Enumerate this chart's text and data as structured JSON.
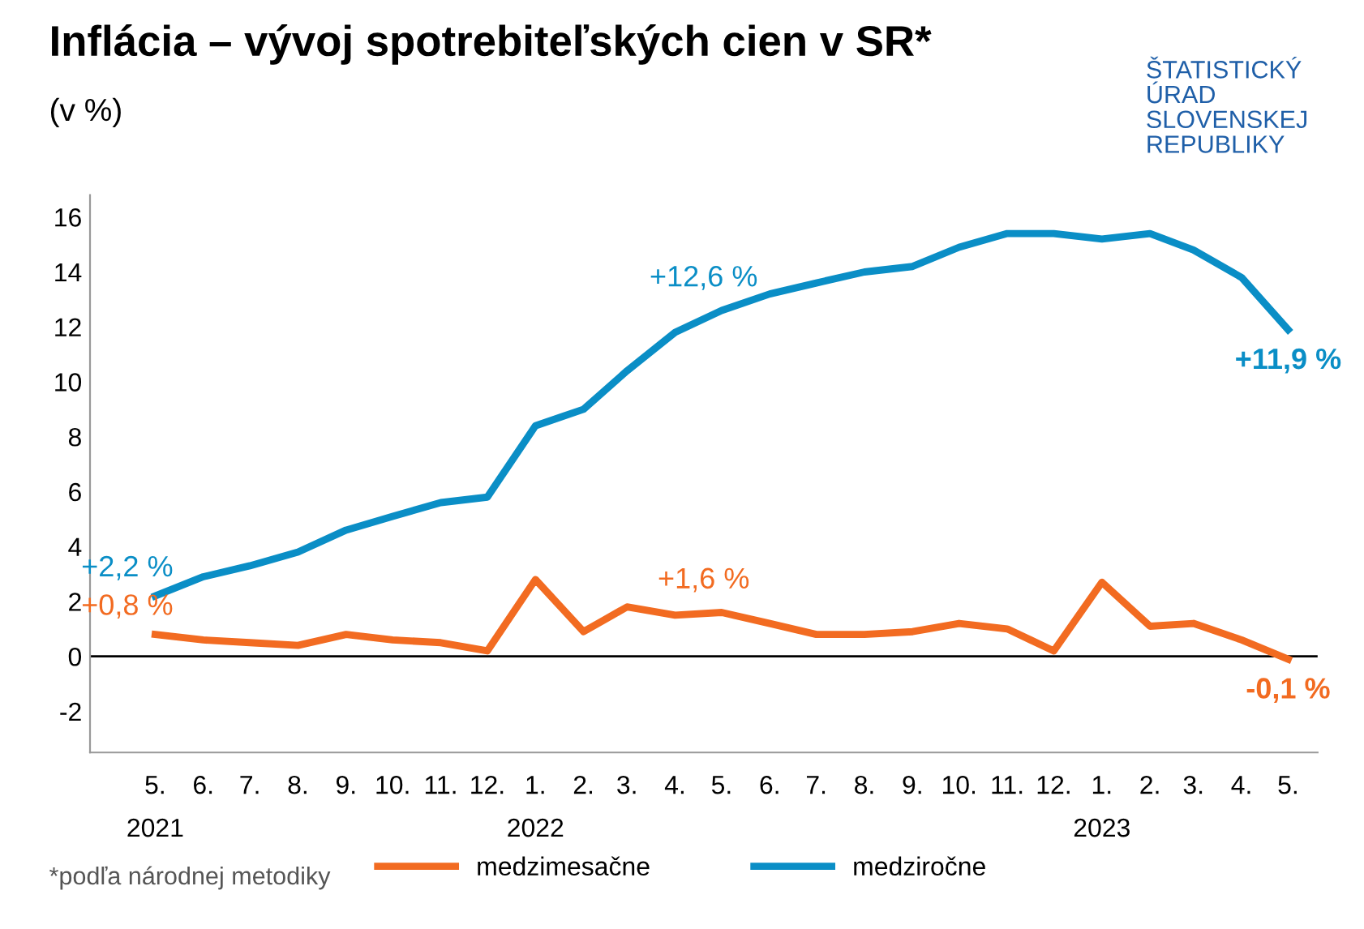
{
  "chart_data": {
    "type": "line",
    "title": "Inflácia – vývoj spotrebiteľských cien v SR*",
    "subtitle": "(v %)",
    "x": [
      "2021-05",
      "2021-06",
      "2021-07",
      "2021-08",
      "2021-09",
      "2021-10",
      "2021-11",
      "2021-12",
      "2022-01",
      "2022-02",
      "2022-03",
      "2022-04",
      "2022-05",
      "2022-06",
      "2022-07",
      "2022-08",
      "2022-09",
      "2022-10",
      "2022-11",
      "2022-12",
      "2023-01",
      "2023-02",
      "2023-03",
      "2023-04",
      "2023-05"
    ],
    "series": [
      {
        "name": "medzimesačne",
        "color": "#f26b21",
        "values": [
          0.8,
          0.6,
          0.5,
          0.4,
          0.8,
          0.6,
          0.5,
          0.2,
          2.8,
          0.9,
          1.8,
          1.5,
          1.6,
          1.2,
          0.8,
          0.8,
          0.9,
          1.2,
          1.0,
          0.2,
          2.7,
          1.1,
          1.2,
          0.6,
          -0.1
        ]
      },
      {
        "name": "medziročne",
        "color": "#0a8ec6",
        "values": [
          2.2,
          2.9,
          3.3,
          3.8,
          4.6,
          5.1,
          5.6,
          5.8,
          8.4,
          9.0,
          10.4,
          11.8,
          12.6,
          13.2,
          13.6,
          14.0,
          14.2,
          14.9,
          15.4,
          15.4,
          15.2,
          15.4,
          14.8,
          13.8,
          11.9
        ]
      }
    ],
    "xlim": [
      "2021-03-20",
      "2023-05-20"
    ],
    "xticks": [
      {
        "value": "2021-05",
        "label": "5.\n2021"
      },
      {
        "value": "2021-06",
        "label": "6."
      },
      {
        "value": "2021-07",
        "label": "7."
      },
      {
        "value": "2021-08",
        "label": "8."
      },
      {
        "value": "2021-09",
        "label": "9."
      },
      {
        "value": "2021-10",
        "label": "10."
      },
      {
        "value": "2021-11",
        "label": "11."
      },
      {
        "value": "2021-12",
        "label": "12."
      },
      {
        "value": "2022-01",
        "label": "1.\n2022"
      },
      {
        "value": "2022-02",
        "label": "2."
      },
      {
        "value": "2022-03",
        "label": "3."
      },
      {
        "value": "2022-04",
        "label": "4."
      },
      {
        "value": "2022-05",
        "label": "5."
      },
      {
        "value": "2022-06",
        "label": "6."
      },
      {
        "value": "2022-07",
        "label": "7."
      },
      {
        "value": "2022-08",
        "label": "8."
      },
      {
        "value": "2022-09",
        "label": "9."
      },
      {
        "value": "2022-10",
        "label": "10."
      },
      {
        "value": "2022-11",
        "label": "11."
      },
      {
        "value": "2022-12",
        "label": "12."
      },
      {
        "value": "2023-01",
        "label": "1.\n2023"
      },
      {
        "value": "2023-02",
        "label": "2."
      },
      {
        "value": "2023-03",
        "label": "3."
      },
      {
        "value": "2023-04",
        "label": "4."
      },
      {
        "value": "2023-05",
        "label": "5."
      }
    ],
    "ylim": [
      -3.5,
      16.8
    ],
    "yticks": [
      {
        "value": -2,
        "label": "-2"
      },
      0,
      2,
      4,
      6,
      8,
      10,
      12,
      14,
      16
    ],
    "ref_lines": [
      {
        "axis": "y",
        "value": 0,
        "color": "#000000"
      }
    ],
    "grid": false,
    "legend": "bottom",
    "marker": "none",
    "line_style": "solid",
    "annotations": [
      {
        "text": "+2,2 %",
        "x": "2021-05",
        "y": 2.2
      },
      {
        "text": "+0,8 %",
        "x": "2021-05",
        "y": 0.8
      },
      {
        "text": "+12,6 %",
        "x": "2022-05",
        "y": 12.6
      },
      {
        "text": "+1,6 %",
        "x": "2022-05",
        "y": 1.6
      },
      {
        "text": "+11,9 %",
        "x": "2023-05",
        "y": 11.9
      },
      {
        "text": "-0,1 %",
        "x": "2023-05",
        "y": -0.1
      },
      "*podľa národnej metodiky",
      "ŠTATISTICKÝ\nÚRAD\nSLOVENSKEJ\nREPUBLIKY"
    ]
  }
}
